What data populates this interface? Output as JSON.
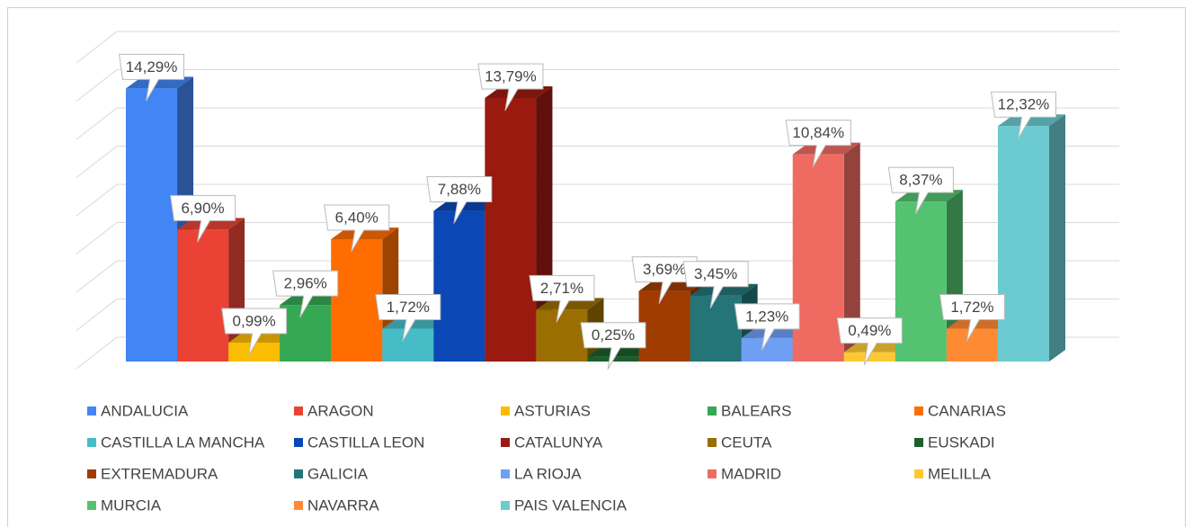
{
  "chart_data": {
    "type": "bar3d",
    "categories": [
      "ANDALUCIA",
      "ARAGON",
      "ASTURIAS",
      "BALEARS",
      "CANARIAS",
      "CASTILLA LA MANCHA",
      "CASTILLA LEON",
      "CATALUNYA",
      "CEUTA",
      "EUSKADI",
      "EXTREMADURA",
      "GALICIA",
      "LA RIOJA",
      "MADRID",
      "MELILLA",
      "MURCIA",
      "NAVARRA",
      "PAIS VALENCIA"
    ],
    "values": [
      14.29,
      6.9,
      0.99,
      2.96,
      6.4,
      1.72,
      7.88,
      13.79,
      2.71,
      0.25,
      3.69,
      3.45,
      1.23,
      10.84,
      0.49,
      8.37,
      1.72,
      12.32
    ],
    "value_labels": [
      "14,29%",
      "6,90%",
      "0,99%",
      "2,96%",
      "6,40%",
      "1,72%",
      "7,88%",
      "13,79%",
      "2,71%",
      "0,25%",
      "3,69%",
      "3,45%",
      "1,23%",
      "10,84%",
      "0,49%",
      "8,37%",
      "1,72%",
      "12,32%"
    ],
    "colors": [
      "#4285f4",
      "#ea4335",
      "#fbbc04",
      "#34a853",
      "#ff6d01",
      "#46bdc6",
      "#0b47b5",
      "#9a1a10",
      "#9a6e00",
      "#1c5e2c",
      "#a03c00",
      "#247478",
      "#6f9ef5",
      "#ef6b62",
      "#fcc934",
      "#54c270",
      "#ff8a34",
      "#6bcbd1"
    ],
    "ylim": [
      0,
      16
    ],
    "yticks": [
      0,
      2,
      4,
      6,
      8,
      10,
      12,
      14,
      16
    ],
    "grid": true,
    "legend": "bottom"
  }
}
